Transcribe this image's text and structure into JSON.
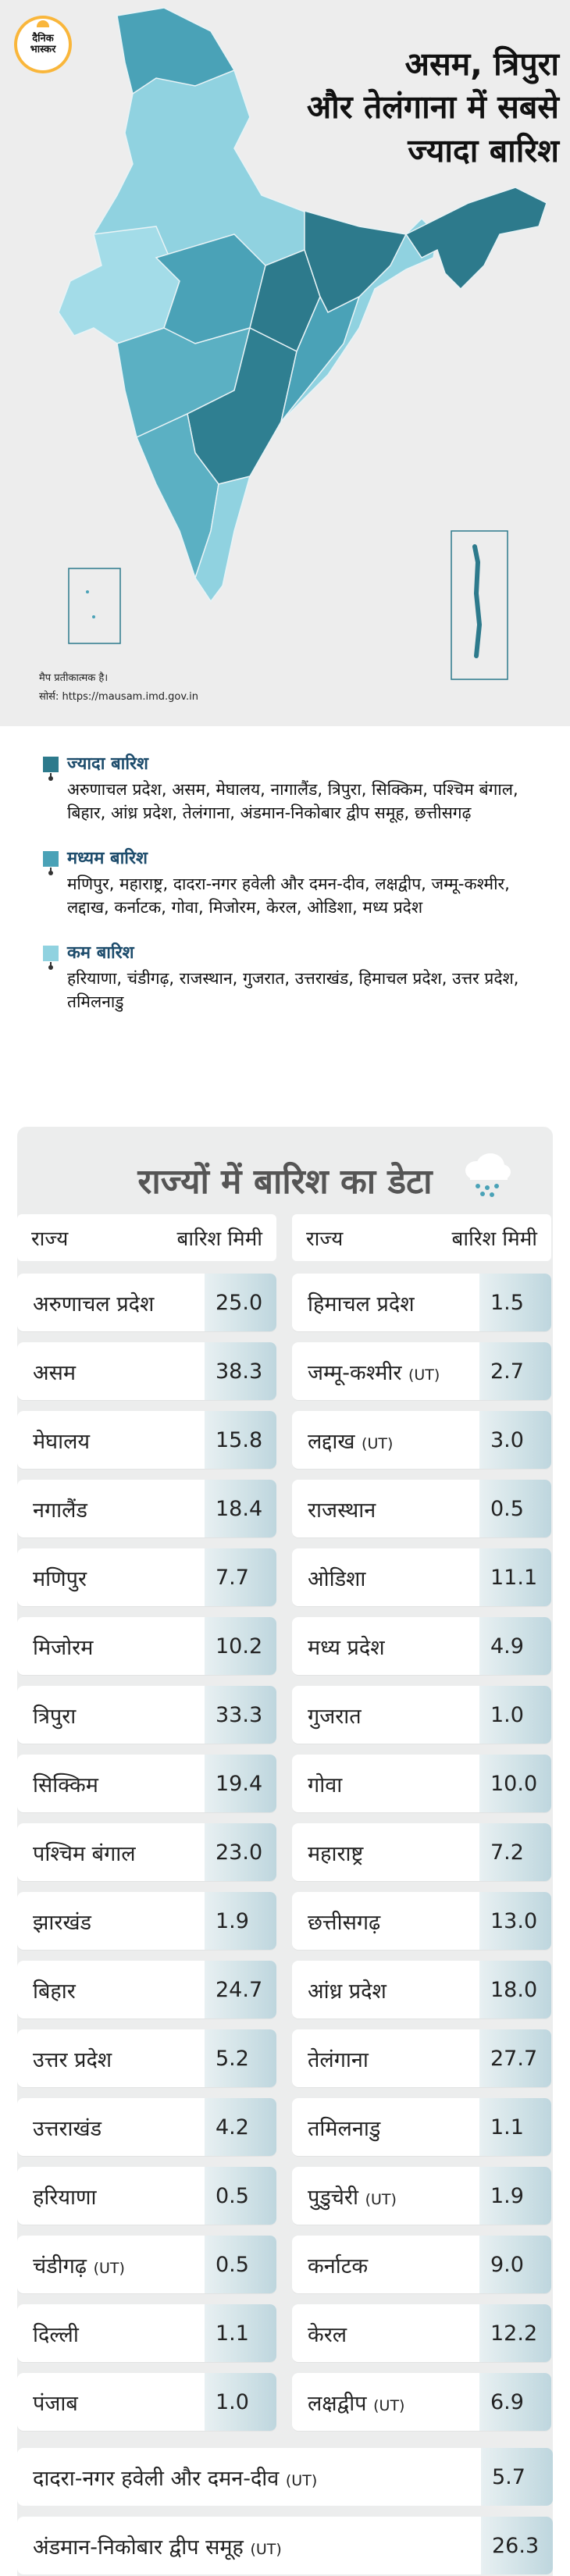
{
  "logo": {
    "line1": "दैनिक",
    "line2": "भास्कर"
  },
  "headline": {
    "line1": "असम, त्रिपुरा",
    "line2": "और तेलंगाना में सबसे",
    "line3": "ज्यादा बारिश"
  },
  "map": {
    "note": "मैप प्रतीकात्मक है।",
    "source": "सोर्स: https://mausam.imd.gov.in",
    "colors": {
      "high": "#2d7a8c",
      "medium": "#4aa2b7",
      "low": "#90d2e0",
      "land": "#8fc8d6"
    }
  },
  "legend": [
    {
      "color": "#2d7a8c",
      "title": "ज्यादा बारिश",
      "states": "अरुणाचल प्रदेश, असम, मेघालय, नागालैंड, त्रिपुरा, सिक्किम, पश्चिम बंगाल, बिहार, आंध्र प्रदेश, तेलंगाना, अंडमान-निकोबार द्वीप समूह, छत्तीसगढ़"
    },
    {
      "color": "#4aa2b7",
      "title": "मध्यम बारिश",
      "states": "मणिपुर, महाराष्ट्र, दादरा-नगर हवेली और दमन-दीव, लक्षद्वीप, जम्मू-कश्मीर, लद्दाख, कर्नाटक, गोवा, मिजोरम, केरल, ओडिशा, मध्य प्रदेश"
    },
    {
      "color": "#90d2e0",
      "title": "कम बारिश",
      "states": "हरियाणा, चंडीगढ़, राजस्थान, गुजरात, उत्तराखंड, हिमाचल प्रदेश, उत्तर प्रदेश, तमिलनाडु"
    }
  ],
  "table": {
    "title": "राज्यों में बारिश का डेटा",
    "header": {
      "state": "राज्य",
      "value": "बारिश मिमी"
    },
    "left": [
      {
        "name": "अरुणाचल प्रदेश",
        "ut": "",
        "value": "25.0"
      },
      {
        "name": "असम",
        "ut": "",
        "value": "38.3"
      },
      {
        "name": "मेघालय",
        "ut": "",
        "value": "15.8"
      },
      {
        "name": "नगालैंड",
        "ut": "",
        "value": "18.4"
      },
      {
        "name": "मणिपुर",
        "ut": "",
        "value": "7.7"
      },
      {
        "name": "मिजोरम",
        "ut": "",
        "value": "10.2"
      },
      {
        "name": "त्रिपुरा",
        "ut": "",
        "value": "33.3"
      },
      {
        "name": "सिक्किम",
        "ut": "",
        "value": "19.4"
      },
      {
        "name": "पश्चिम बंगाल",
        "ut": "",
        "value": "23.0"
      },
      {
        "name": "झारखंड",
        "ut": "",
        "value": "1.9"
      },
      {
        "name": "बिहार",
        "ut": "",
        "value": "24.7"
      },
      {
        "name": "उत्तर प्रदेश",
        "ut": "",
        "value": "5.2"
      },
      {
        "name": "उत्तराखंड",
        "ut": "",
        "value": "4.2"
      },
      {
        "name": "हरियाणा",
        "ut": "",
        "value": "0.5"
      },
      {
        "name": "चंडीगढ़",
        "ut": "(UT)",
        "value": "0.5"
      },
      {
        "name": "दिल्ली",
        "ut": "",
        "value": "1.1"
      },
      {
        "name": "पंजाब",
        "ut": "",
        "value": "1.0"
      }
    ],
    "right": [
      {
        "name": "हिमाचल प्रदेश",
        "ut": "",
        "value": "1.5"
      },
      {
        "name": "जम्मू-कश्मीर",
        "ut": "(UT)",
        "value": "2.7"
      },
      {
        "name": "लद्दाख",
        "ut": "(UT)",
        "value": "3.0"
      },
      {
        "name": "राजस्थान",
        "ut": "",
        "value": "0.5"
      },
      {
        "name": "ओडिशा",
        "ut": "",
        "value": "11.1"
      },
      {
        "name": "मध्य प्रदेश",
        "ut": "",
        "value": "4.9"
      },
      {
        "name": "गुजरात",
        "ut": "",
        "value": "1.0"
      },
      {
        "name": "गोवा",
        "ut": "",
        "value": "10.0"
      },
      {
        "name": "महाराष्ट्र",
        "ut": "",
        "value": "7.2"
      },
      {
        "name": "छत्तीसगढ़",
        "ut": "",
        "value": "13.0"
      },
      {
        "name": "आंध्र प्रदेश",
        "ut": "",
        "value": "18.0"
      },
      {
        "name": "तेलंगाना",
        "ut": "",
        "value": "27.7"
      },
      {
        "name": "तमिलनाडु",
        "ut": "",
        "value": "1.1"
      },
      {
        "name": "पुडुचेरी",
        "ut": "(UT)",
        "value": "1.9"
      },
      {
        "name": "कर्नाटक",
        "ut": "",
        "value": "9.0"
      },
      {
        "name": "केरल",
        "ut": "",
        "value": "12.2"
      },
      {
        "name": "लक्षद्वीप",
        "ut": "(UT)",
        "value": "6.9"
      }
    ],
    "full": [
      {
        "name": "दादरा-नगर हवेली और दमन-दीव",
        "ut": "(UT)",
        "value": "5.7"
      },
      {
        "name": "अंडमान-निकोबार द्वीप समूह",
        "ut": "(UT)",
        "value": "26.3"
      }
    ]
  }
}
